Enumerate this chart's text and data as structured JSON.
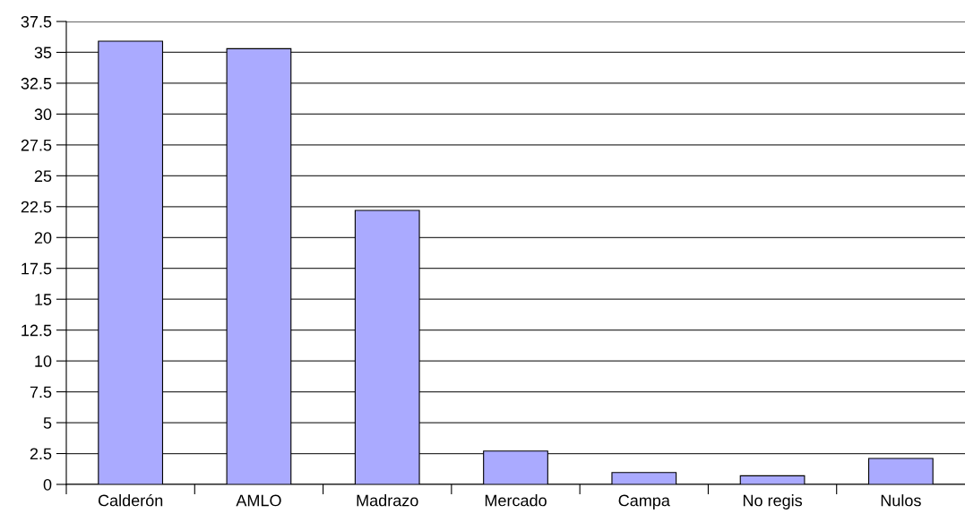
{
  "chart_data": {
    "type": "bar",
    "categories": [
      "Calderón",
      "AMLO",
      "Madrazo",
      "Mercado",
      "Campa",
      "No regis",
      "Nulos"
    ],
    "values": [
      35.9,
      35.3,
      22.2,
      2.7,
      0.96,
      0.7,
      2.1
    ],
    "color": "#aaaaff",
    "ylim": [
      0,
      37.5
    ],
    "yticks": [
      0,
      2.5,
      5,
      7.5,
      10,
      12.5,
      15,
      17.5,
      20,
      22.5,
      25,
      27.5,
      30,
      32.5,
      35,
      37.5
    ],
    "grid": "y",
    "legend": false
  }
}
